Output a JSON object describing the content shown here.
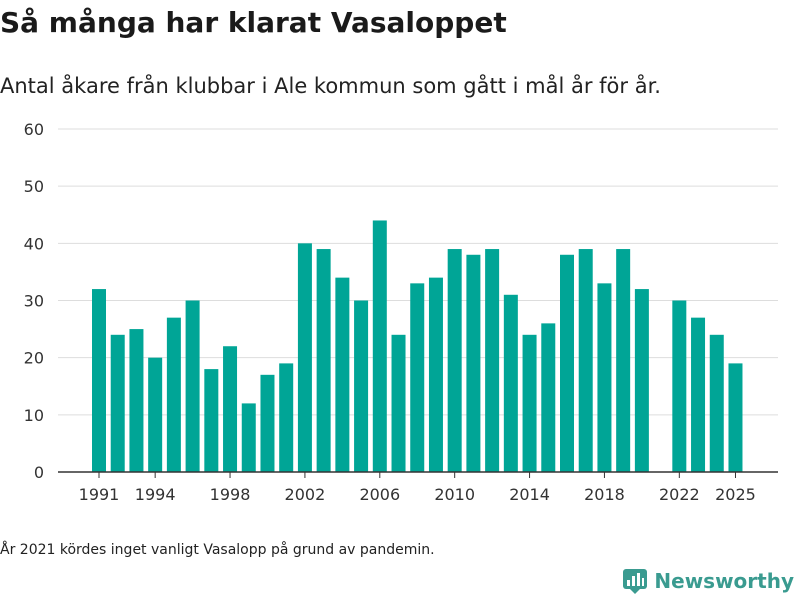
{
  "title": "Så många har klarat Vasaloppet",
  "subtitle": "Antal åkare från klubbar i Ale kommun som gått i mål år för år.",
  "note": "År 2021 kördes inget vanligt Vasalopp på grund av pandemin.",
  "brand": {
    "name": "Newsworthy",
    "icon": "newsworthy-logo-icon",
    "color": "#3a9b90"
  },
  "chart_data": {
    "type": "bar",
    "x": [
      1991,
      1992,
      1993,
      1994,
      1995,
      1996,
      1997,
      1998,
      1999,
      2000,
      2001,
      2002,
      2003,
      2004,
      2005,
      2006,
      2007,
      2008,
      2009,
      2010,
      2011,
      2012,
      2013,
      2014,
      2015,
      2016,
      2017,
      2018,
      2019,
      2020,
      2021,
      2022,
      2023,
      2024,
      2025
    ],
    "values": [
      32,
      24,
      25,
      20,
      27,
      30,
      18,
      22,
      12,
      17,
      19,
      40,
      39,
      34,
      30,
      44,
      24,
      33,
      34,
      39,
      38,
      39,
      31,
      24,
      26,
      38,
      39,
      33,
      39,
      32,
      null,
      30,
      27,
      24,
      19
    ],
    "xticks": [
      "1991",
      "1994",
      "1998",
      "2002",
      "2006",
      "2010",
      "2014",
      "2018",
      "2022",
      "2025"
    ],
    "yticks": [
      "0",
      "10",
      "20",
      "30",
      "40",
      "50",
      "60"
    ],
    "ylim": [
      0,
      60
    ],
    "grid": true,
    "bar_color": "#00a596"
  }
}
